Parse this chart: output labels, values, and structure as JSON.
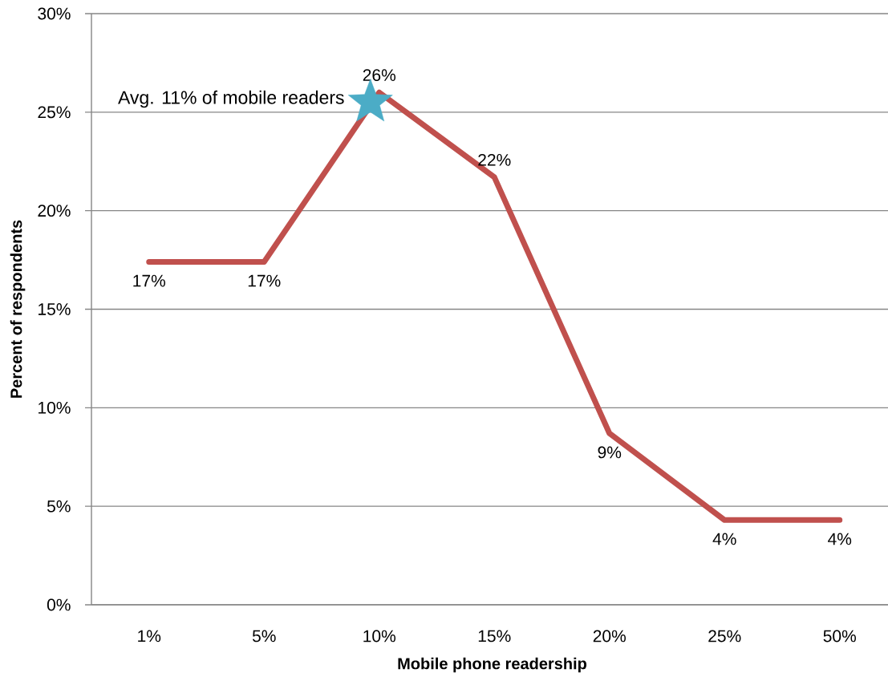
{
  "chart_data": {
    "type": "line",
    "xlabel": "Mobile phone readership",
    "ylabel": "Percent of respondents",
    "categories": [
      "1%",
      "5%",
      "10%",
      "15%",
      "20%",
      "25%",
      "50%"
    ],
    "series": [
      {
        "color": "#c0504d",
        "values": [
          17.4,
          17.4,
          26.0,
          21.7,
          8.7,
          4.3,
          4.3
        ],
        "value_labels": [
          "17%",
          "17%",
          "26%",
          "22%",
          "9%",
          "4%",
          "4%"
        ]
      },
      {
        "type": "scatter",
        "marker": "star",
        "color": "#4bacc6",
        "values": [
          null,
          null,
          25.5,
          null,
          null,
          null,
          null
        ]
      }
    ],
    "ylim": [
      0,
      30
    ],
    "yticks": [
      {
        "value": 0,
        "label": "0%"
      },
      {
        "value": 5,
        "label": "5%"
      },
      {
        "value": 10,
        "label": "10%"
      },
      {
        "value": 15,
        "label": "15%"
      },
      {
        "value": 20,
        "label": "20%"
      },
      {
        "value": 25,
        "label": "25%"
      },
      {
        "value": 30,
        "label": "30%"
      }
    ],
    "grid": "y",
    "marker": "none",
    "line_style": "solid",
    "annotations": [
      "Avg. 11% of mobile readers"
    ]
  }
}
